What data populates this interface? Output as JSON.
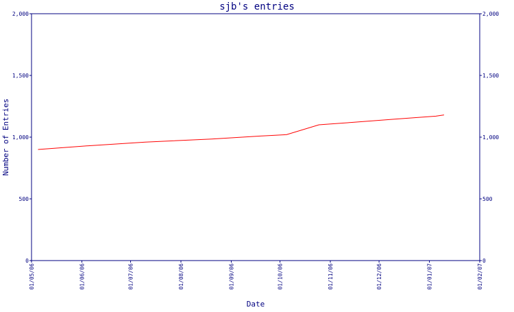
{
  "chart_data": {
    "type": "line",
    "title": "sjb's entries",
    "xlabel": "Date",
    "ylabel": "Number of Entries",
    "ylim": [
      0,
      2000
    ],
    "xlim": [
      "2006-05-01",
      "2007-02-01"
    ],
    "yticks": [
      0,
      500,
      1000,
      1500,
      2000
    ],
    "ytick_labels": [
      "0",
      "500",
      "1,000",
      "1,500",
      "2,000"
    ],
    "xticks": [
      "2006-05-01",
      "2006-06-01",
      "2006-07-01",
      "2006-08-01",
      "2006-09-01",
      "2006-10-01",
      "2006-11-01",
      "2006-12-01",
      "2007-01-01",
      "2007-02-01"
    ],
    "xtick_labels": [
      "01/05/06",
      "01/06/06",
      "01/07/06",
      "01/08/06",
      "01/09/06",
      "01/10/06",
      "01/11/06",
      "01/12/06",
      "01/01/07",
      "01/02/07"
    ],
    "grid": false,
    "colors": {
      "line": "#ff0000",
      "axis": "#000080",
      "text": "#000080"
    },
    "series": [
      {
        "x": [
          "2006-05-05",
          "2006-06-05",
          "2006-07-10",
          "2006-08-20",
          "2006-09-20",
          "2006-10-05",
          "2006-10-25",
          "2006-11-15",
          "2006-12-10",
          "2007-01-05",
          "2007-01-10"
        ],
        "y": [
          900,
          930,
          960,
          985,
          1010,
          1020,
          1100,
          1120,
          1145,
          1170,
          1180
        ]
      }
    ]
  }
}
